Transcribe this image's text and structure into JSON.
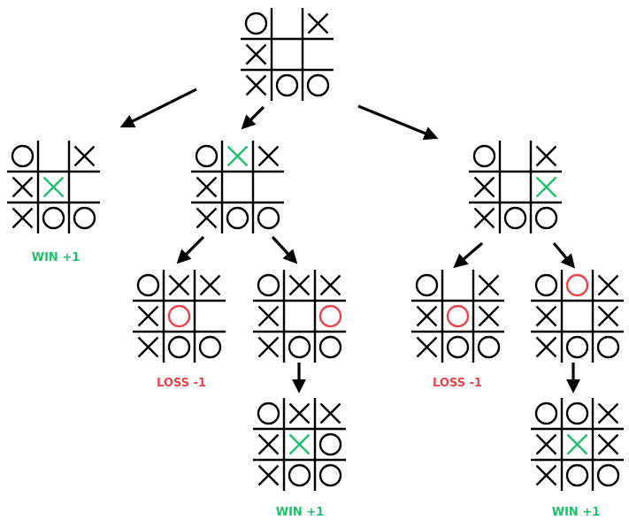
{
  "colors": {
    "x_new": "#1fbf6a",
    "o_new": "#e8434b",
    "win": "#1fbf6a",
    "loss": "#e8434b",
    "ink": "#000000"
  },
  "boards": [
    {
      "id": "root",
      "cells": [
        "O",
        "",
        "X",
        "X",
        "",
        "",
        "X",
        "O",
        "O"
      ],
      "new_cell": null
    },
    {
      "id": "left-child",
      "cells": [
        "O",
        "",
        "X",
        "X",
        "X",
        "",
        "X",
        "O",
        "O"
      ],
      "new_cell": 4
    },
    {
      "id": "middle-child",
      "cells": [
        "O",
        "X",
        "X",
        "X",
        "",
        "",
        "X",
        "O",
        "O"
      ],
      "new_cell": 1
    },
    {
      "id": "right-child",
      "cells": [
        "O",
        "",
        "X",
        "X",
        "",
        "X",
        "X",
        "O",
        "O"
      ],
      "new_cell": 5
    },
    {
      "id": "middle-left-grandchild",
      "cells": [
        "O",
        "X",
        "X",
        "X",
        "O",
        "",
        "X",
        "O",
        "O"
      ],
      "new_cell": 4
    },
    {
      "id": "middle-right-grandchild",
      "cells": [
        "O",
        "X",
        "X",
        "X",
        "",
        "O",
        "X",
        "O",
        "O"
      ],
      "new_cell": 5
    },
    {
      "id": "right-left-grandchild",
      "cells": [
        "O",
        "",
        "X",
        "X",
        "O",
        "X",
        "X",
        "O",
        "O"
      ],
      "new_cell": 4
    },
    {
      "id": "right-right-grandchild",
      "cells": [
        "O",
        "O",
        "X",
        "X",
        "",
        "X",
        "X",
        "O",
        "O"
      ],
      "new_cell": 1
    },
    {
      "id": "middle-right-leaf",
      "cells": [
        "O",
        "X",
        "X",
        "X",
        "X",
        "O",
        "X",
        "O",
        "O"
      ],
      "new_cell": 4
    },
    {
      "id": "right-right-leaf",
      "cells": [
        "O",
        "O",
        "X",
        "X",
        "X",
        "X",
        "X",
        "O",
        "O"
      ],
      "new_cell": 4
    }
  ],
  "outcomes": [
    {
      "id": "left-child",
      "text": "WIN +1",
      "kind": "win"
    },
    {
      "id": "middle-left-grandchild",
      "text": "LOSS -1",
      "kind": "loss"
    },
    {
      "id": "right-left-grandchild",
      "text": "LOSS -1",
      "kind": "loss"
    },
    {
      "id": "middle-right-leaf",
      "text": "WIN +1",
      "kind": "win"
    },
    {
      "id": "right-right-leaf",
      "text": "WIN +1",
      "kind": "win"
    }
  ]
}
